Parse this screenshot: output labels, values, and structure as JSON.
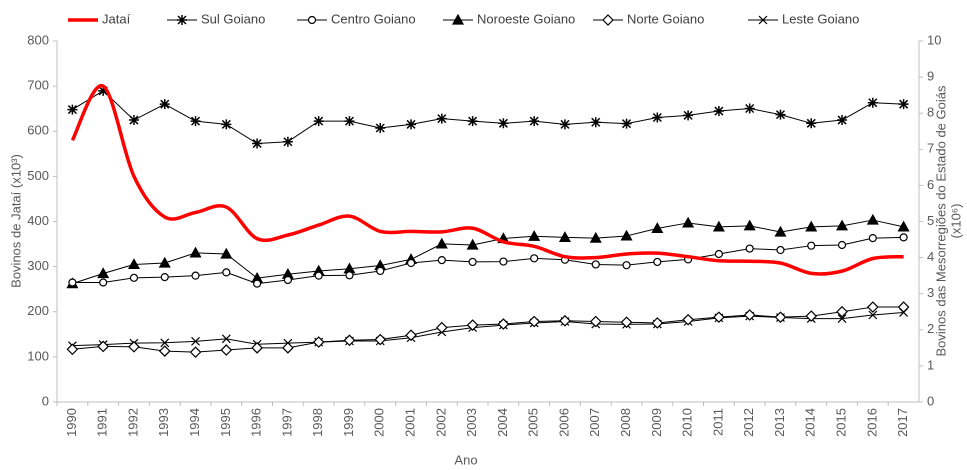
{
  "chart_data": {
    "type": "line",
    "categories": [
      "1990",
      "1991",
      "1992",
      "1993",
      "1994",
      "1995",
      "1996",
      "1997",
      "1998",
      "1999",
      "2000",
      "2001",
      "2002",
      "2003",
      "2004",
      "2005",
      "2006",
      "2007",
      "2008",
      "2009",
      "2010",
      "2011",
      "2012",
      "2013",
      "2014",
      "2015",
      "2016",
      "2017"
    ],
    "xlabel": "Ano",
    "ylabel": "Bovinos de Jataí (x10³)",
    "y2label": [
      "Bovinos das Mesorregiões do Estado de Goiás",
      "(x10⁶)"
    ],
    "ylim": [
      0,
      800
    ],
    "yticks": [
      0,
      100,
      200,
      300,
      400,
      500,
      600,
      700,
      800
    ],
    "y2lim": [
      0,
      10
    ],
    "y2ticks": [
      0,
      1,
      2,
      3,
      4,
      5,
      6,
      7,
      8,
      9,
      10
    ],
    "series": [
      {
        "name": "Jataí",
        "color": "#ff0000",
        "marker": "none",
        "smooth": true,
        "width": 3.5,
        "values": [
          580,
          700,
          500,
          410,
          420,
          432,
          362,
          370,
          392,
          412,
          378,
          378,
          377,
          385,
          355,
          345,
          322,
          320,
          328,
          330,
          322,
          313,
          312,
          308,
          285,
          290,
          318,
          322
        ]
      },
      {
        "name": "Sul Goiano",
        "color": "#000000",
        "marker": "asterisk",
        "axis": "y2",
        "width": 1,
        "values": [
          8.1,
          8.62,
          7.81,
          8.25,
          7.78,
          7.69,
          7.16,
          7.21,
          7.78,
          7.78,
          7.59,
          7.69,
          7.85,
          7.78,
          7.72,
          7.78,
          7.69,
          7.75,
          7.71,
          7.88,
          7.94,
          8.06,
          8.13,
          7.96,
          7.72,
          7.81,
          8.29,
          8.25
        ]
      },
      {
        "name": "Centro Goiano",
        "color": "#000000",
        "marker": "circle",
        "axis": "y2",
        "width": 1,
        "values": [
          3.31,
          3.31,
          3.44,
          3.46,
          3.5,
          3.59,
          3.28,
          3.38,
          3.5,
          3.51,
          3.63,
          3.85,
          3.93,
          3.88,
          3.89,
          3.98,
          3.94,
          3.81,
          3.79,
          3.88,
          3.95,
          4.1,
          4.25,
          4.21,
          4.33,
          4.35,
          4.54,
          4.56
        ]
      },
      {
        "name": "Noroeste Goiano",
        "color": "#000000",
        "marker": "triangle",
        "axis": "y2",
        "width": 1,
        "values": [
          3.28,
          3.56,
          3.81,
          3.85,
          4.13,
          4.1,
          3.43,
          3.54,
          3.63,
          3.69,
          3.78,
          3.95,
          4.38,
          4.35,
          4.53,
          4.59,
          4.56,
          4.54,
          4.6,
          4.81,
          4.96,
          4.85,
          4.88,
          4.71,
          4.85,
          4.88,
          5.04,
          4.85
        ]
      },
      {
        "name": "Norte Goiano",
        "color": "#000000",
        "marker": "diamond",
        "axis": "y2",
        "width": 1,
        "values": [
          1.46,
          1.54,
          1.53,
          1.41,
          1.38,
          1.44,
          1.5,
          1.5,
          1.66,
          1.71,
          1.73,
          1.85,
          2.06,
          2.13,
          2.16,
          2.23,
          2.25,
          2.23,
          2.21,
          2.19,
          2.28,
          2.35,
          2.41,
          2.35,
          2.38,
          2.5,
          2.63,
          2.63
        ]
      },
      {
        "name": "Leste Goiano",
        "color": "#000000",
        "marker": "x",
        "axis": "y2",
        "width": 1,
        "values": [
          1.56,
          1.59,
          1.63,
          1.64,
          1.68,
          1.75,
          1.6,
          1.63,
          1.66,
          1.69,
          1.69,
          1.78,
          1.94,
          2.06,
          2.13,
          2.19,
          2.23,
          2.16,
          2.15,
          2.16,
          2.23,
          2.33,
          2.38,
          2.34,
          2.31,
          2.31,
          2.41,
          2.48
        ]
      }
    ]
  }
}
